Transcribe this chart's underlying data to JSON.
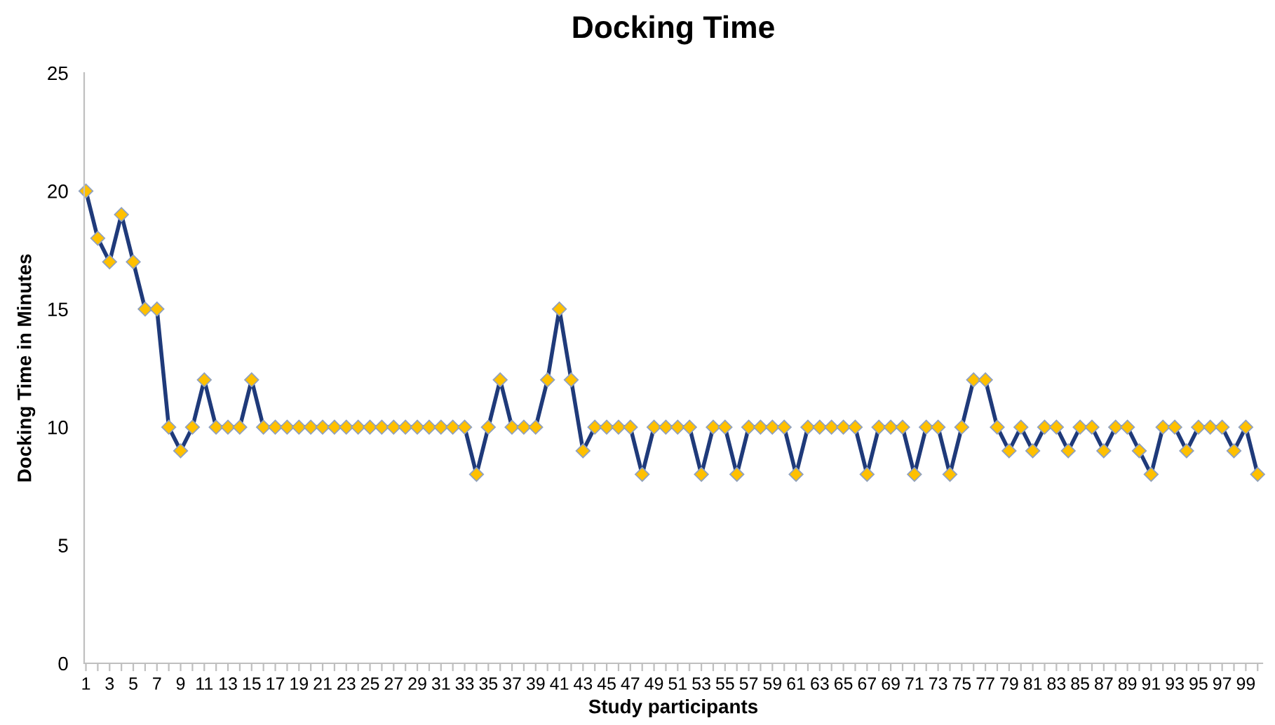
{
  "chart_data": {
    "type": "line",
    "title": "Docking Time",
    "xlabel": "Study participants",
    "ylabel": "Docking Time in Minutes",
    "categories": [
      "1",
      null,
      "3",
      null,
      "5",
      null,
      "7",
      null,
      "9",
      null,
      "11",
      null,
      "13",
      null,
      "15",
      null,
      "17",
      null,
      "19",
      null,
      "21",
      null,
      "23",
      null,
      "25",
      null,
      "27",
      null,
      "29",
      null,
      "31",
      null,
      "33",
      null,
      "35",
      null,
      "37",
      null,
      "39",
      null,
      "41",
      null,
      "43",
      null,
      "45",
      null,
      "47",
      null,
      "49",
      null,
      "51",
      null,
      "53",
      null,
      "55",
      null,
      "57",
      null,
      "59",
      null,
      "61",
      null,
      "63",
      null,
      "65",
      null,
      "67",
      null,
      "69",
      null,
      "71",
      null,
      "73",
      null,
      "75",
      null,
      "77",
      null,
      "79",
      null,
      "81",
      null,
      "83",
      null,
      "85",
      null,
      "87",
      null,
      "89",
      null,
      "91",
      null,
      "93",
      null,
      "95",
      null,
      "97",
      null,
      "99",
      null
    ],
    "series": [
      {
        "color": "#1f3a7a",
        "values": [
          20,
          18,
          17,
          19,
          17,
          15,
          15,
          10,
          9,
          10,
          12,
          10,
          10,
          10,
          12,
          10,
          10,
          10,
          10,
          10,
          10,
          10,
          10,
          10,
          10,
          10,
          10,
          10,
          10,
          10,
          10,
          10,
          10,
          8,
          10,
          12,
          10,
          10,
          10,
          12,
          15,
          12,
          9,
          10,
          10,
          10,
          10,
          8,
          10,
          10,
          10,
          10,
          8,
          10,
          10,
          8,
          10,
          10,
          10,
          10,
          8,
          10,
          10,
          10,
          10,
          10,
          8,
          10,
          10,
          10,
          8,
          10,
          10,
          8,
          10,
          12,
          12,
          10,
          9,
          10,
          9,
          10,
          10,
          9,
          10,
          10,
          9,
          10,
          10,
          9,
          8,
          10,
          10,
          9,
          10,
          10,
          10,
          9,
          10,
          8
        ]
      }
    ],
    "ylim": [
      0,
      25
    ],
    "yticks": [
      0,
      5,
      10,
      15,
      20,
      25
    ],
    "grid": false,
    "legend": false,
    "marker": "diamond",
    "line_style": "solid"
  }
}
